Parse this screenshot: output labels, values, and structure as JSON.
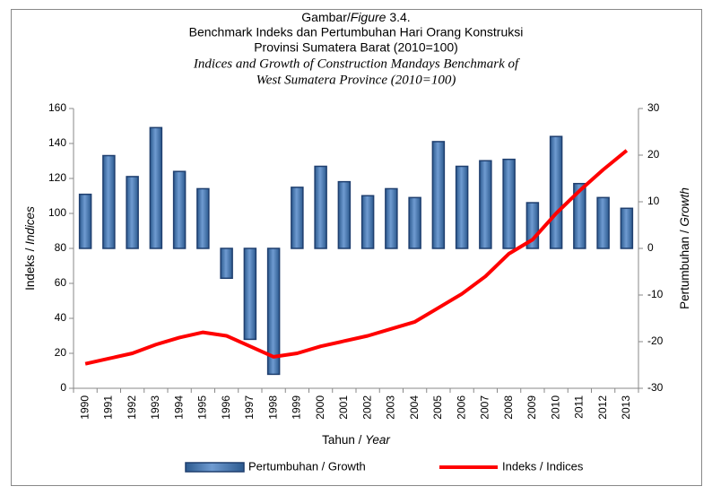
{
  "chart_data": {
    "type": "bar",
    "title_line1": [
      "Gambar/",
      "Figure",
      " 3.4."
    ],
    "title_line2": "Benchmark Indeks dan Pertumbuhan Hari Orang Konstruksi",
    "title_line3": "Provinsi Sumatera Barat (2010=100)",
    "title_line4": "Indices and Growth of Construction Mandays Benchmark of",
    "title_line5": "West  Sumatera   Province (2010=100)",
    "xlabel": [
      "Tahun / ",
      "Year"
    ],
    "ylabel": [
      "Indeks / ",
      "Indices"
    ],
    "y2label": [
      "Pertumbuhan / ",
      "Growth"
    ],
    "categories": [
      "1990",
      "1991",
      "1992",
      "1993",
      "1994",
      "1995",
      "1996",
      "1997",
      "1998",
      "1999",
      "2000",
      "2001",
      "2002",
      "2003",
      "2004",
      "2005",
      "2006",
      "2007",
      "2008",
      "2009",
      "2010",
      "2011",
      "2012",
      "2013"
    ],
    "series": [
      {
        "name": "Pertumbuhan / Growth",
        "type": "bar",
        "axis": "y2",
        "color": "#4f81bd",
        "values": [
          11.6,
          19.9,
          15.4,
          25.9,
          16.5,
          12.8,
          -6.4,
          -19.5,
          -27,
          13.1,
          17.6,
          14.3,
          11.3,
          12.8,
          10.9,
          22.9,
          17.6,
          18.8,
          19.1,
          9.8,
          24,
          13.9,
          10.9,
          8.6
        ]
      },
      {
        "name": "Indeks / Indices",
        "type": "line",
        "axis": "y",
        "color": "#ff0000",
        "values": [
          14,
          17,
          20,
          25,
          29,
          32,
          30,
          24,
          18,
          20,
          24,
          27,
          30,
          34,
          38,
          46,
          54,
          64,
          77,
          85,
          100,
          113,
          125,
          136
        ]
      }
    ],
    "ylim": [
      0,
      160
    ],
    "yticks": [
      0,
      20,
      40,
      60,
      80,
      100,
      120,
      140,
      160
    ],
    "y2lim": [
      -30,
      30
    ],
    "y2ticks": [
      -30,
      -20,
      -10,
      0,
      10,
      20,
      30
    ],
    "grid": false,
    "legend": "bottom"
  }
}
